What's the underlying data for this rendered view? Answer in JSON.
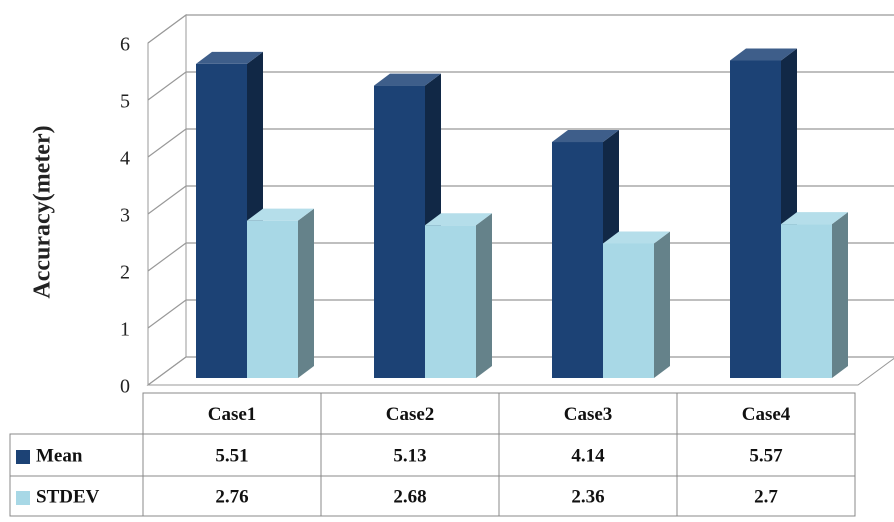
{
  "chart_data": {
    "type": "bar3d",
    "y_label": "Accuracy(meter)",
    "categories": [
      "Case1",
      "Case2",
      "Case3",
      "Case4"
    ],
    "series": [
      {
        "name": "Mean",
        "color": "#1c4275",
        "values": [
          5.51,
          5.13,
          4.14,
          5.57
        ]
      },
      {
        "name": "STDEV",
        "color": "#a8d8e6",
        "values": [
          2.76,
          2.68,
          2.36,
          2.7
        ]
      }
    ],
    "ylim": [
      0,
      6
    ],
    "yticks": [
      0,
      1,
      2,
      3,
      4,
      5,
      6
    ],
    "grid": true
  }
}
